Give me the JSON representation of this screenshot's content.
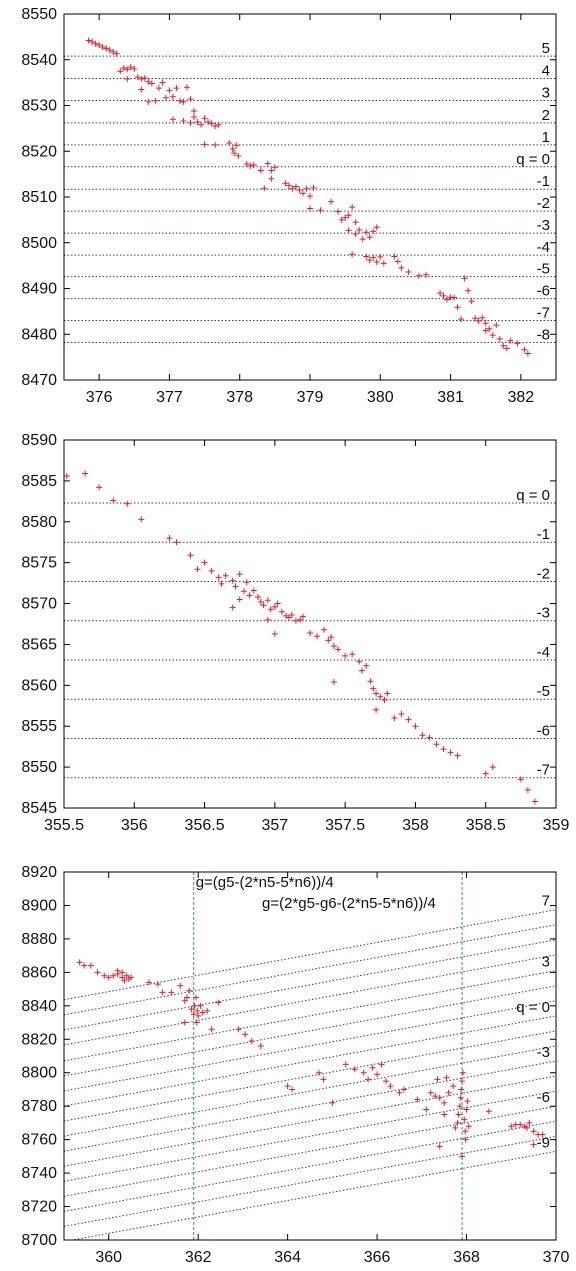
{
  "colors": {
    "points": "#e0202a",
    "q_lines": "#3333aa",
    "formula_lines": "#22aa44",
    "axes": "#000000"
  },
  "chart_data": [
    {
      "type": "scatter",
      "marker": "plus",
      "title": "",
      "xlabel": "",
      "ylabel": "",
      "xlim": [
        375.5,
        382.5
      ],
      "ylim": [
        8470,
        8550
      ],
      "xticks": [
        376,
        377,
        378,
        379,
        380,
        381,
        382
      ],
      "yticks": [
        8470,
        8480,
        8490,
        8500,
        8510,
        8520,
        8530,
        8540,
        8550
      ],
      "q_lines": {
        "style": "dotted",
        "slope": 0,
        "values": [
          8540.8,
          8535.9,
          8531.1,
          8526.2,
          8521.4,
          8516.6,
          8511.7,
          8506.9,
          8502.1,
          8497.3,
          8492.6,
          8487.8,
          8483.0,
          8478.2
        ],
        "labels": [
          "5",
          "4",
          "3",
          "2",
          "1",
          "q = 0",
          "-1",
          "-2",
          "-3",
          "-4",
          "-5",
          "-6",
          "-7",
          "-8"
        ]
      },
      "points": [
        [
          375.85,
          8544.2
        ],
        [
          375.9,
          8543.9
        ],
        [
          375.95,
          8543.5
        ],
        [
          376.0,
          8543.2
        ],
        [
          376.05,
          8542.8
        ],
        [
          376.1,
          8542.5
        ],
        [
          376.15,
          8542.1
        ],
        [
          376.2,
          8541.7
        ],
        [
          376.25,
          8541.3
        ],
        [
          376.3,
          8537.5
        ],
        [
          376.35,
          8538.2
        ],
        [
          376.4,
          8537.9
        ],
        [
          376.45,
          8538.4
        ],
        [
          376.5,
          8538.0
        ],
        [
          376.4,
          8535.8
        ],
        [
          376.55,
          8536.2
        ],
        [
          376.6,
          8535.8
        ],
        [
          376.65,
          8536.0
        ],
        [
          376.7,
          8535.2
        ],
        [
          376.75,
          8534.8
        ],
        [
          376.6,
          8533.5
        ],
        [
          376.7,
          8530.8
        ],
        [
          376.8,
          8531.0
        ],
        [
          376.85,
          8533.8
        ],
        [
          376.9,
          8535.0
        ],
        [
          376.95,
          8531.7
        ],
        [
          377.0,
          8533.3
        ],
        [
          377.05,
          8531.9
        ],
        [
          377.1,
          8533.8
        ],
        [
          377.15,
          8531.0
        ],
        [
          377.2,
          8530.8
        ],
        [
          377.25,
          8534.0
        ],
        [
          377.3,
          8531.4
        ],
        [
          377.35,
          8528.8
        ],
        [
          377.05,
          8527.0
        ],
        [
          377.2,
          8526.6
        ],
        [
          377.3,
          8526.2
        ],
        [
          377.35,
          8527.5
        ],
        [
          377.4,
          8526.4
        ],
        [
          377.45,
          8525.8
        ],
        [
          377.5,
          8527.2
        ],
        [
          377.55,
          8526.4
        ],
        [
          377.6,
          8526.1
        ],
        [
          377.65,
          8525.5
        ],
        [
          377.7,
          8525.8
        ],
        [
          377.5,
          8521.5
        ],
        [
          377.65,
          8521.4
        ],
        [
          377.85,
          8521.8
        ],
        [
          377.9,
          8520.5
        ],
        [
          377.95,
          8521.3
        ],
        [
          377.92,
          8519.6
        ],
        [
          377.98,
          8519.0
        ],
        [
          378.1,
          8517.2
        ],
        [
          378.15,
          8516.8
        ],
        [
          378.2,
          8517.0
        ],
        [
          378.3,
          8515.8
        ],
        [
          378.4,
          8517.3
        ],
        [
          378.45,
          8515.8
        ],
        [
          378.5,
          8516.5
        ],
        [
          378.45,
          8514.0
        ],
        [
          378.35,
          8511.9
        ],
        [
          378.65,
          8513.0
        ],
        [
          378.7,
          8512.5
        ],
        [
          378.75,
          8511.8
        ],
        [
          378.8,
          8512.3
        ],
        [
          378.85,
          8511.5
        ],
        [
          378.9,
          8510.8
        ],
        [
          378.95,
          8511.8
        ],
        [
          379.0,
          8510.2
        ],
        [
          379.05,
          8512.0
        ],
        [
          379.0,
          8507.5
        ],
        [
          379.15,
          8507.1
        ],
        [
          379.3,
          8509.0
        ],
        [
          379.4,
          8506.8
        ],
        [
          379.45,
          8505.0
        ],
        [
          379.5,
          8505.5
        ],
        [
          379.55,
          8506.0
        ],
        [
          379.6,
          8507.8
        ],
        [
          379.65,
          8504.5
        ],
        [
          379.55,
          8502.7
        ],
        [
          379.65,
          8501.9
        ],
        [
          379.7,
          8502.8
        ],
        [
          379.75,
          8500.8
        ],
        [
          379.8,
          8502.3
        ],
        [
          379.85,
          8501.2
        ],
        [
          379.9,
          8502.5
        ],
        [
          379.95,
          8503.4
        ],
        [
          379.6,
          8497.5
        ],
        [
          379.8,
          8497.0
        ],
        [
          379.85,
          8496.2
        ],
        [
          379.9,
          8496.8
        ],
        [
          379.95,
          8495.8
        ],
        [
          380.0,
          8496.9
        ],
        [
          380.05,
          8495.5
        ],
        [
          380.2,
          8497.0
        ],
        [
          380.25,
          8495.9
        ],
        [
          380.3,
          8494.5
        ],
        [
          380.4,
          8493.6
        ],
        [
          380.55,
          8492.8
        ],
        [
          380.65,
          8493.0
        ],
        [
          380.85,
          8489.0
        ],
        [
          380.9,
          8488.4
        ],
        [
          380.95,
          8487.6
        ],
        [
          381.0,
          8488.1
        ],
        [
          381.05,
          8488.0
        ],
        [
          381.1,
          8485.9
        ],
        [
          381.15,
          8483.3
        ],
        [
          381.2,
          8492.2
        ],
        [
          381.25,
          8489.5
        ],
        [
          381.3,
          8487.2
        ],
        [
          381.35,
          8483.5
        ],
        [
          381.4,
          8482.9
        ],
        [
          381.45,
          8483.6
        ],
        [
          381.5,
          8482.4
        ],
        [
          381.55,
          8481.2
        ],
        [
          381.5,
          8480.8
        ],
        [
          381.6,
          8479.8
        ],
        [
          381.65,
          8482.0
        ],
        [
          381.7,
          8479.0
        ],
        [
          381.75,
          8477.5
        ],
        [
          381.8,
          8476.9
        ],
        [
          381.85,
          8478.6
        ],
        [
          381.95,
          8478.0
        ],
        [
          382.05,
          8476.6
        ],
        [
          382.1,
          8475.8
        ]
      ]
    },
    {
      "type": "scatter",
      "marker": "plus",
      "title": "",
      "xlabel": "",
      "ylabel": "",
      "xlim": [
        355.5,
        359
      ],
      "ylim": [
        8545,
        8590
      ],
      "xticks": [
        355.5,
        356,
        356.5,
        357,
        357.5,
        358,
        358.5,
        359
      ],
      "xtick_labels": [
        "355.5",
        "356",
        "356.5",
        "357",
        "357.5",
        "358",
        "358.5",
        "359"
      ],
      "yticks": [
        8545,
        8550,
        8555,
        8560,
        8565,
        8570,
        8575,
        8580,
        8585,
        8590
      ],
      "q_lines": {
        "style": "dotted",
        "slope": 0,
        "values": [
          8582.3,
          8577.5,
          8572.7,
          8567.9,
          8563.1,
          8558.3,
          8553.5,
          8548.7
        ],
        "labels": [
          "q = 0",
          "-1",
          "-2",
          "-3",
          "-4",
          "-5",
          "-6",
          "-7"
        ]
      },
      "points": [
        [
          355.52,
          8585.6
        ],
        [
          355.65,
          8585.9
        ],
        [
          355.75,
          8584.2
        ],
        [
          355.85,
          8582.6
        ],
        [
          355.95,
          8582.2
        ],
        [
          356.05,
          8580.3
        ],
        [
          356.25,
          8578.0
        ],
        [
          356.3,
          8577.5
        ],
        [
          356.4,
          8575.9
        ],
        [
          356.45,
          8574.2
        ],
        [
          356.5,
          8575.0
        ],
        [
          356.55,
          8574.0
        ],
        [
          356.6,
          8573.2
        ],
        [
          356.62,
          8572.4
        ],
        [
          356.65,
          8573.4
        ],
        [
          356.7,
          8572.8
        ],
        [
          356.72,
          8572.1
        ],
        [
          356.75,
          8573.6
        ],
        [
          356.78,
          8571.5
        ],
        [
          356.8,
          8572.6
        ],
        [
          356.82,
          8571.0
        ],
        [
          356.85,
          8571.6
        ],
        [
          356.7,
          8569.5
        ],
        [
          356.75,
          8570.5
        ],
        [
          356.88,
          8570.8
        ],
        [
          356.9,
          8570.2
        ],
        [
          356.92,
          8569.8
        ],
        [
          356.95,
          8570.4
        ],
        [
          356.97,
          8569.3
        ],
        [
          357.0,
          8569.6
        ],
        [
          357.02,
          8570.0
        ],
        [
          357.05,
          8569.0
        ],
        [
          357.08,
          8568.5
        ],
        [
          357.1,
          8568.3
        ],
        [
          357.12,
          8568.6
        ],
        [
          357.15,
          8567.9
        ],
        [
          357.18,
          8568.0
        ],
        [
          357.2,
          8568.4
        ],
        [
          356.95,
          8568.0
        ],
        [
          357.0,
          8566.3
        ],
        [
          357.25,
          8566.4
        ],
        [
          357.3,
          8566.0
        ],
        [
          357.35,
          8566.8
        ],
        [
          357.38,
          8565.5
        ],
        [
          357.4,
          8565.9
        ],
        [
          357.42,
          8564.8
        ],
        [
          357.45,
          8564.4
        ],
        [
          357.5,
          8563.6
        ],
        [
          357.55,
          8563.8
        ],
        [
          357.6,
          8562.9
        ],
        [
          357.65,
          8562.4
        ],
        [
          357.62,
          8561.8
        ],
        [
          357.68,
          8560.5
        ],
        [
          357.7,
          8559.6
        ],
        [
          357.72,
          8559.0
        ],
        [
          357.75,
          8558.6
        ],
        [
          357.78,
          8558.2
        ],
        [
          357.8,
          8559.0
        ],
        [
          357.42,
          8560.4
        ],
        [
          357.72,
          8557.0
        ],
        [
          357.85,
          8556.0
        ],
        [
          357.9,
          8556.5
        ],
        [
          357.95,
          8555.8
        ],
        [
          358.0,
          8555.0
        ],
        [
          358.05,
          8553.9
        ],
        [
          358.1,
          8553.6
        ],
        [
          358.15,
          8552.8
        ],
        [
          358.2,
          8552.2
        ],
        [
          358.25,
          8551.8
        ],
        [
          358.3,
          8551.4
        ],
        [
          358.55,
          8550.0
        ],
        [
          358.5,
          8549.2
        ],
        [
          358.75,
          8548.5
        ],
        [
          358.8,
          8547.2
        ],
        [
          358.85,
          8545.8
        ]
      ]
    },
    {
      "type": "scatter",
      "marker": "plus",
      "title": "",
      "xlabel": "",
      "ylabel": "",
      "xlim": [
        359,
        370
      ],
      "ylim": [
        8700,
        8920
      ],
      "xticks": [
        360,
        362,
        364,
        366,
        368,
        370
      ],
      "yticks": [
        8700,
        8720,
        8740,
        8760,
        8780,
        8800,
        8820,
        8840,
        8860,
        8880,
        8900,
        8920
      ],
      "q_lines": {
        "style": "dotted",
        "slope": 4.9,
        "values_at_x_end": [
          8897.5,
          8888.5,
          8879.5,
          8870.5,
          8861.0,
          8852.0,
          8843.0,
          8834.0,
          8825.0,
          8816.0,
          8807.0,
          8798.0,
          8789.0,
          8780.0,
          8771.0,
          8762.0,
          8753.0
        ],
        "labels": [
          "7",
          "3",
          "q = 0",
          "-3",
          "-6",
          "-9"
        ],
        "labeled_values": [
          8897.5,
          8861.0,
          8834.0,
          8807.0,
          8780.0,
          8753.0
        ]
      },
      "vertical_lines": [
        {
          "x": 361.9,
          "label": "g=(g5-(2*n5-5*n6))/4"
        },
        {
          "x": 367.9,
          "label": "g=(2*g5-g6-(2*n5-5*n6))/4"
        }
      ],
      "points": [
        [
          359.35,
          8866
        ],
        [
          359.45,
          8864
        ],
        [
          359.6,
          8864
        ],
        [
          359.75,
          8860
        ],
        [
          359.9,
          8858
        ],
        [
          360.0,
          8857
        ],
        [
          360.1,
          8858
        ],
        [
          360.2,
          8859
        ],
        [
          360.3,
          8857
        ],
        [
          360.35,
          8855
        ],
        [
          360.4,
          8858
        ],
        [
          360.45,
          8856
        ],
        [
          360.5,
          8857
        ],
        [
          360.2,
          8861
        ],
        [
          360.3,
          8860
        ],
        [
          360.9,
          8854
        ],
        [
          361.1,
          8853
        ],
        [
          361.2,
          8848
        ],
        [
          361.4,
          8848
        ],
        [
          361.6,
          8852
        ],
        [
          361.7,
          8843
        ],
        [
          361.75,
          8845
        ],
        [
          361.8,
          8849
        ],
        [
          361.85,
          8838
        ],
        [
          361.9,
          8835
        ],
        [
          361.92,
          8840
        ],
        [
          361.95,
          8845
        ],
        [
          361.97,
          8830
        ],
        [
          361.98,
          8837
        ],
        [
          362.0,
          8834
        ],
        [
          362.05,
          8840
        ],
        [
          362.1,
          8836
        ],
        [
          362.2,
          8837
        ],
        [
          361.7,
          8830
        ],
        [
          362.3,
          8826
        ],
        [
          362.45,
          8842
        ],
        [
          362.9,
          8826
        ],
        [
          363.05,
          8823
        ],
        [
          363.2,
          8819
        ],
        [
          363.4,
          8816
        ],
        [
          364.0,
          8792
        ],
        [
          364.1,
          8790
        ],
        [
          364.7,
          8800
        ],
        [
          364.8,
          8796
        ],
        [
          365.0,
          8782
        ],
        [
          365.3,
          8805
        ],
        [
          365.5,
          8802
        ],
        [
          365.7,
          8800
        ],
        [
          365.8,
          8796
        ],
        [
          365.9,
          8803
        ],
        [
          366.0,
          8799
        ],
        [
          366.1,
          8805
        ],
        [
          366.2,
          8795
        ],
        [
          366.3,
          8792
        ],
        [
          366.5,
          8788
        ],
        [
          366.6,
          8790
        ],
        [
          366.9,
          8784
        ],
        [
          367.1,
          8778
        ],
        [
          367.2,
          8788
        ],
        [
          367.3,
          8786
        ],
        [
          367.35,
          8796
        ],
        [
          367.4,
          8785
        ],
        [
          367.5,
          8782
        ],
        [
          367.55,
          8797
        ],
        [
          367.6,
          8788
        ],
        [
          367.7,
          8792
        ],
        [
          367.75,
          8767
        ],
        [
          367.8,
          8770
        ],
        [
          367.82,
          8775
        ],
        [
          367.85,
          8780
        ],
        [
          367.87,
          8785
        ],
        [
          367.88,
          8790
        ],
        [
          367.9,
          8795
        ],
        [
          367.92,
          8800
        ],
        [
          367.95,
          8772
        ],
        [
          367.97,
          8765
        ],
        [
          367.98,
          8760
        ],
        [
          368.0,
          8778
        ],
        [
          368.02,
          8783
        ],
        [
          368.05,
          8768
        ],
        [
          367.9,
          8750
        ],
        [
          367.5,
          8775
        ],
        [
          367.4,
          8756
        ],
        [
          368.5,
          8777
        ],
        [
          369.0,
          8768
        ],
        [
          369.1,
          8769
        ],
        [
          369.2,
          8769
        ],
        [
          369.3,
          8768
        ],
        [
          369.35,
          8767
        ],
        [
          369.4,
          8770
        ],
        [
          369.5,
          8765
        ],
        [
          369.6,
          8763
        ],
        [
          369.7,
          8763
        ],
        [
          369.5,
          8757
        ]
      ]
    }
  ]
}
